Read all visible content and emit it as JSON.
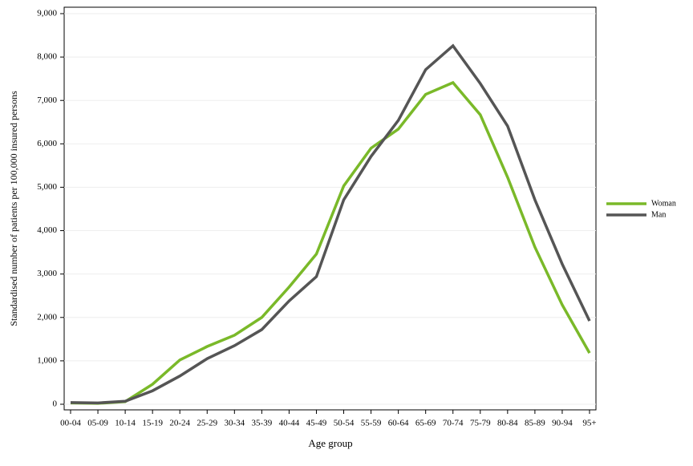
{
  "chart_data": {
    "type": "line",
    "x_label": "Age group",
    "y_label": "Standardised number of patients per 100,000 insured persons",
    "categories": [
      "00-04",
      "05-09",
      "10-14",
      "15-19",
      "20-24",
      "25-29",
      "30-34",
      "35-39",
      "40-44",
      "45-49",
      "50-54",
      "55-59",
      "60-64",
      "65-69",
      "70-74",
      "75-79",
      "80-84",
      "85-89",
      "90-94",
      "95+"
    ],
    "series": [
      {
        "name": "Woman",
        "color": "#7ab929",
        "values": [
          30,
          20,
          60,
          460,
          1020,
          1330,
          1590,
          2000,
          2700,
          3460,
          5030,
          5900,
          6340,
          7140,
          7410,
          6670,
          5230,
          3620,
          2290,
          1180
        ]
      },
      {
        "name": "Man",
        "color": "#555555",
        "values": [
          40,
          30,
          70,
          310,
          650,
          1050,
          1350,
          1720,
          2380,
          2940,
          4710,
          5710,
          6540,
          7710,
          8260,
          7390,
          6410,
          4710,
          3230,
          1920
        ]
      }
    ],
    "ylim": [
      0,
      9000
    ],
    "yticks": [
      {
        "value": 0,
        "label": "0"
      },
      {
        "value": 1000,
        "label": "1,000"
      },
      {
        "value": 2000,
        "label": "2,000"
      },
      {
        "value": 3000,
        "label": "3,000"
      },
      {
        "value": 4000,
        "label": "4,000"
      },
      {
        "value": 5000,
        "label": "5,000"
      },
      {
        "value": 6000,
        "label": "6,000"
      },
      {
        "value": 7000,
        "label": "7,000"
      },
      {
        "value": 8000,
        "label": "8,000"
      },
      {
        "value": 9000,
        "label": "9,000"
      }
    ],
    "grid": true,
    "legend": "right"
  }
}
